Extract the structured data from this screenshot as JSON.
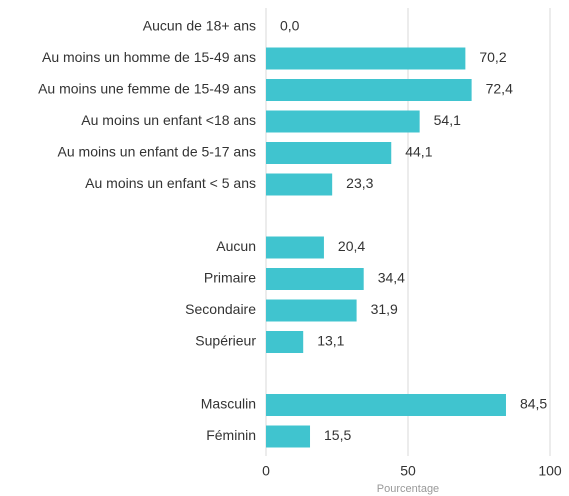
{
  "chart_data": {
    "type": "hbar",
    "orientation": "horizontal",
    "categories": [
      "Aucun de 18+ ans",
      "Au moins un homme de 15-49 ans",
      "Au moins une femme de 15-49 ans",
      "Au moins un enfant <18 ans",
      "Au moins un enfant de 5-17 ans",
      "Au moins un enfant < 5 ans",
      null,
      "Aucun",
      "Primaire",
      "Secondaire",
      "Supérieur",
      null,
      "Masculin",
      "Féminin"
    ],
    "values": [
      0.0,
      70.2,
      72.4,
      54.1,
      44.1,
      23.3,
      null,
      20.4,
      34.4,
      31.9,
      13.1,
      null,
      84.5,
      15.5
    ],
    "value_labels": [
      "0,0",
      "70,2",
      "72,4",
      "54,1",
      "44,1",
      "23,3",
      null,
      "20,4",
      "34,4",
      "31,9",
      "13,1",
      null,
      "84,5",
      "15,5"
    ],
    "color": "#40c4cf",
    "xlabel": "Pourcentage",
    "xlim": [
      0,
      100
    ],
    "xticks": [
      0,
      50,
      100
    ],
    "grid": true
  }
}
